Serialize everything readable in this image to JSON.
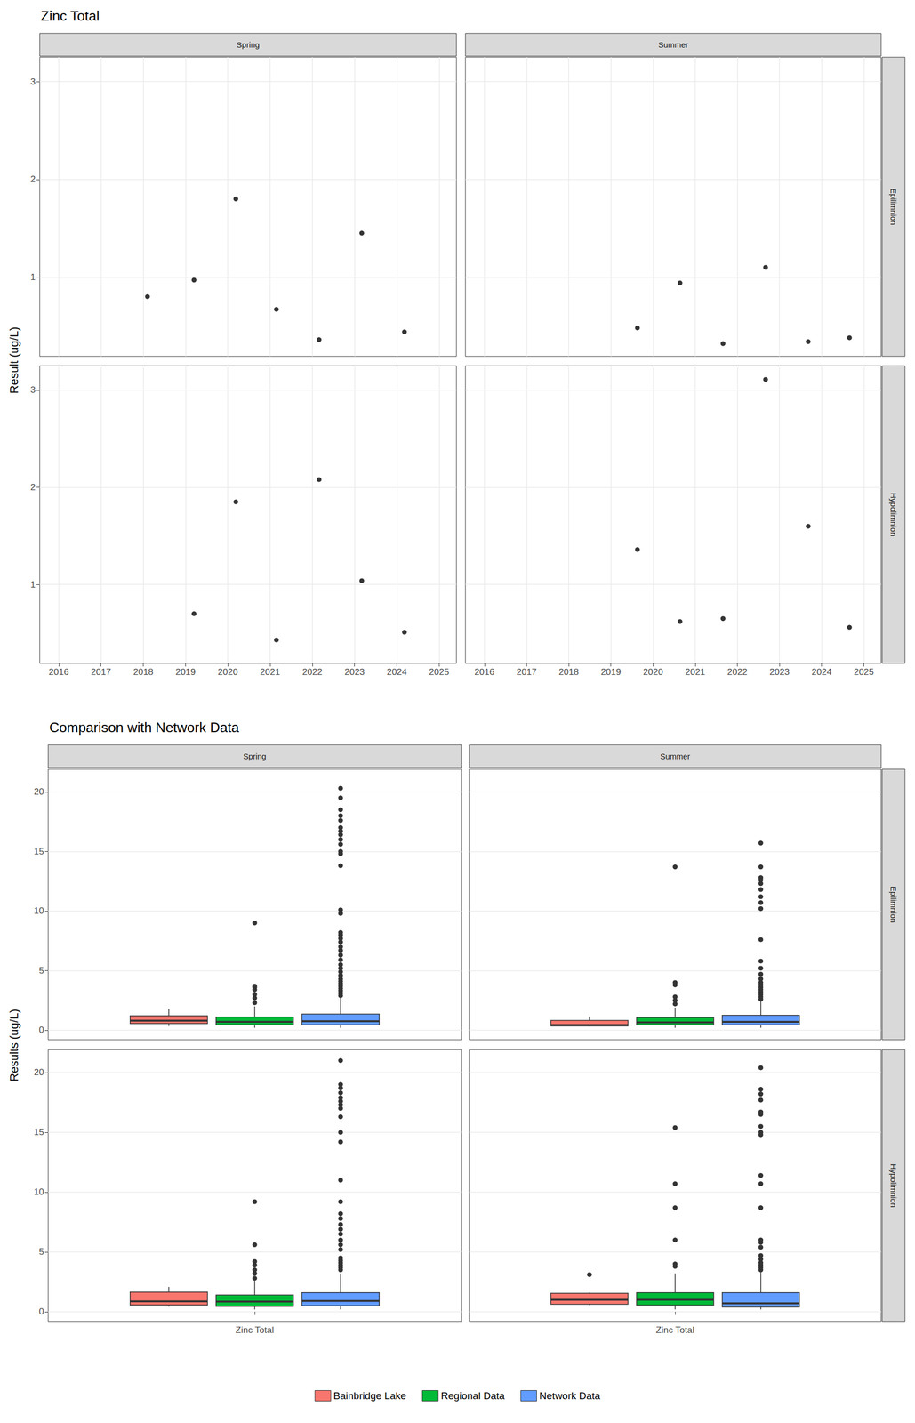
{
  "chart_data": [
    {
      "type": "scatter",
      "title": "Zinc Total",
      "y_label": "Result (ug/L)",
      "columns": [
        "Spring",
        "Summer"
      ],
      "rows": [
        "Epilimnion",
        "Hypolimnion"
      ],
      "xlim": [
        2015.55,
        2025.41
      ],
      "xticks": [
        2016,
        2017,
        2018,
        2019,
        2020,
        2021,
        2022,
        2023,
        2024,
        2025
      ],
      "ylim": [
        0.19,
        3.25
      ],
      "yticks": [
        1,
        2,
        3
      ],
      "grid": true,
      "color": "#000000",
      "marker": "circle",
      "panels": [
        {
          "column": "Spring",
          "row": "Epilimnion",
          "x": [
            2018.1,
            2019.2,
            2020.19,
            2021.15,
            2022.16,
            2023.17,
            2024.18
          ],
          "values": [
            0.8,
            0.97,
            1.8,
            0.67,
            0.36,
            1.45,
            0.44
          ]
        },
        {
          "column": "Summer",
          "row": "Epilimnion",
          "x": [
            2019.63,
            2020.64,
            2021.66,
            2022.67,
            2023.68,
            2024.66
          ],
          "values": [
            0.48,
            0.94,
            0.32,
            1.1,
            0.34,
            0.38
          ]
        },
        {
          "column": "Spring",
          "row": "Hypolimnion",
          "x": [
            2019.2,
            2020.19,
            2021.15,
            2022.16,
            2023.17,
            2024.18
          ],
          "values": [
            0.7,
            1.85,
            0.43,
            2.08,
            1.04,
            0.51
          ]
        },
        {
          "column": "Summer",
          "row": "Hypolimnion",
          "x": [
            2019.63,
            2020.64,
            2021.66,
            2022.67,
            2023.68,
            2024.66
          ],
          "values": [
            1.36,
            0.62,
            0.65,
            3.11,
            1.6,
            0.56
          ]
        }
      ]
    },
    {
      "type": "boxplot",
      "title": "Comparison with Network Data",
      "y_label": "Results (ug/L)",
      "categories": [
        "Zinc Total"
      ],
      "columns": [
        "Spring",
        "Summer"
      ],
      "rows": [
        "Epilimnion",
        "Hypolimnion"
      ],
      "ylim": [
        -0.8,
        21.9
      ],
      "yticks": [
        0,
        5,
        10,
        15,
        20
      ],
      "grid": true,
      "legend": "bottom",
      "series": [
        {
          "name": "Bainbridge Lake",
          "color": "#F8766D"
        },
        {
          "name": "Regional Data",
          "color": "#00BA38"
        },
        {
          "name": "Network Data",
          "color": "#619CFF"
        }
      ],
      "panels": [
        {
          "column": "Spring",
          "row": "Epilimnion",
          "boxes": [
            {
              "series": "Bainbridge Lake",
              "values": [
                0.36,
                0.56,
                0.8,
                1.21,
                1.8
              ],
              "outliers": []
            },
            {
              "series": "Regional Data",
              "values": [
                0.2,
                0.45,
                0.7,
                1.1,
                2.0
              ],
              "outliers": [
                2.3,
                2.7,
                3.0,
                3.4,
                3.6,
                3.7,
                9.0
              ]
            },
            {
              "series": "Network Data",
              "values": [
                0.2,
                0.45,
                0.75,
                1.35,
                2.7
              ],
              "outliers": [
                2.9,
                3.1,
                3.3,
                3.5,
                3.7,
                3.9,
                4.1,
                4.3,
                4.6,
                4.9,
                5.2,
                5.5,
                5.9,
                6.3,
                6.7,
                7.0,
                7.4,
                7.7,
                8.0,
                8.2,
                9.8,
                10.1,
                13.8,
                14.8,
                15.0,
                15.6,
                16.0,
                16.4,
                16.7,
                17.0,
                17.6,
                18.0,
                18.5,
                19.5,
                20.3
              ]
            }
          ]
        },
        {
          "column": "Summer",
          "row": "Epilimnion",
          "boxes": [
            {
              "series": "Bainbridge Lake",
              "values": [
                0.32,
                0.35,
                0.43,
                0.82,
                1.1
              ],
              "outliers": []
            },
            {
              "series": "Regional Data",
              "values": [
                0.2,
                0.45,
                0.65,
                1.05,
                1.9
              ],
              "outliers": [
                2.2,
                2.5,
                2.8,
                3.8,
                4.0,
                13.7
              ]
            },
            {
              "series": "Network Data",
              "values": [
                0.2,
                0.45,
                0.7,
                1.25,
                2.4
              ],
              "outliers": [
                2.6,
                2.8,
                3.0,
                3.2,
                3.4,
                3.6,
                3.8,
                4.0,
                4.3,
                4.7,
                5.2,
                5.8,
                7.6,
                10.2,
                10.7,
                11.2,
                11.8,
                12.3,
                12.6,
                12.8,
                13.7,
                15.7
              ]
            }
          ]
        },
        {
          "column": "Spring",
          "row": "Hypolimnion",
          "boxes": [
            {
              "series": "Bainbridge Lake",
              "values": [
                0.43,
                0.56,
                0.87,
                1.65,
                2.08
              ],
              "outliers": []
            },
            {
              "series": "Regional Data",
              "values": [
                0.2,
                0.45,
                0.85,
                1.4,
                2.6
              ],
              "outliers": [
                2.8,
                3.2,
                3.5,
                3.9,
                4.2,
                5.6,
                9.2
              ]
            },
            {
              "series": "Network Data",
              "values": [
                0.2,
                0.5,
                0.9,
                1.6,
                3.2
              ],
              "outliers": [
                3.5,
                3.7,
                3.9,
                4.1,
                4.3,
                4.5,
                4.8,
                5.2,
                5.6,
                6.0,
                6.5,
                6.9,
                7.3,
                7.8,
                8.2,
                9.2,
                11.0,
                14.2,
                15.0,
                16.3,
                17.0,
                17.3,
                17.6,
                17.9,
                18.3,
                18.7,
                19.0,
                21.0
              ]
            }
          ]
        },
        {
          "column": "Summer",
          "row": "Hypolimnion",
          "boxes": [
            {
              "series": "Bainbridge Lake",
              "values": [
                0.56,
                0.63,
                1.0,
                1.54,
                1.6
              ],
              "outliers": [
                3.11
              ]
            },
            {
              "series": "Regional Data",
              "values": [
                0.2,
                0.55,
                1.0,
                1.6,
                3.2
              ],
              "outliers": [
                3.8,
                4.0,
                4.8,
                6.0,
                8.7,
                10.7,
                15.4
              ]
            },
            {
              "series": "Network Data",
              "values": [
                0.2,
                0.4,
                0.7,
                1.6,
                3.3
              ],
              "outliers": [
                3.5,
                3.7,
                3.9,
                4.1,
                4.4,
                4.7,
                5.0,
                5.4,
                5.8,
                6.0,
                8.7,
                10.7,
                11.4,
                14.8,
                15.0,
                15.5,
                16.5,
                16.7,
                17.7,
                18.2,
                18.6,
                20.4
              ]
            }
          ]
        }
      ]
    }
  ]
}
